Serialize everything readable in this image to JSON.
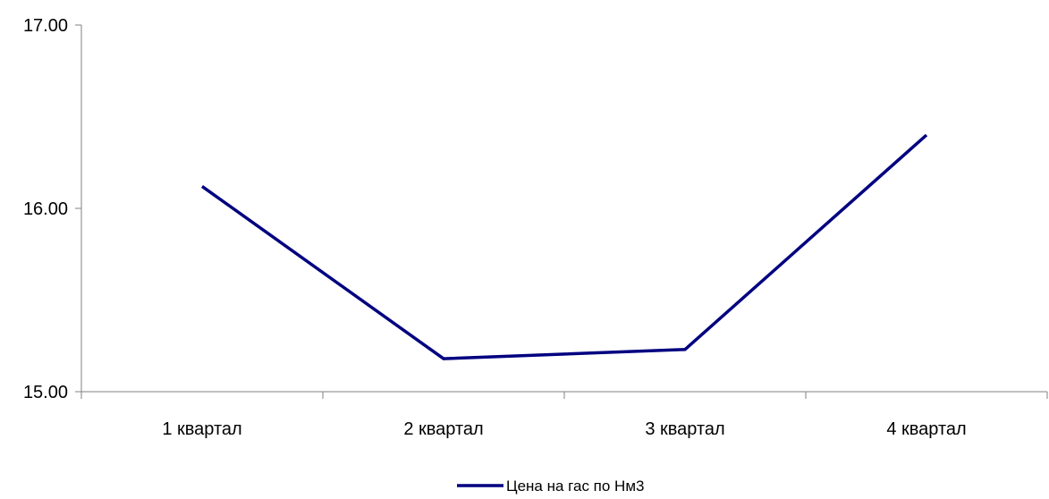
{
  "chart_data": {
    "type": "line",
    "title": "",
    "xlabel": "",
    "ylabel": "",
    "categories": [
      "1 квартал",
      "2 квартал",
      "3 квартал",
      "4 квартал"
    ],
    "series": [
      {
        "name": "Цена на гас по Нм3",
        "values": [
          16.12,
          15.18,
          15.23,
          16.4
        ],
        "color": "#000080"
      }
    ],
    "ylim": [
      15.0,
      17.0
    ],
    "yticks": [
      "15.00",
      "16.00",
      "17.00"
    ],
    "grid": false,
    "legend_position": "bottom-center"
  }
}
